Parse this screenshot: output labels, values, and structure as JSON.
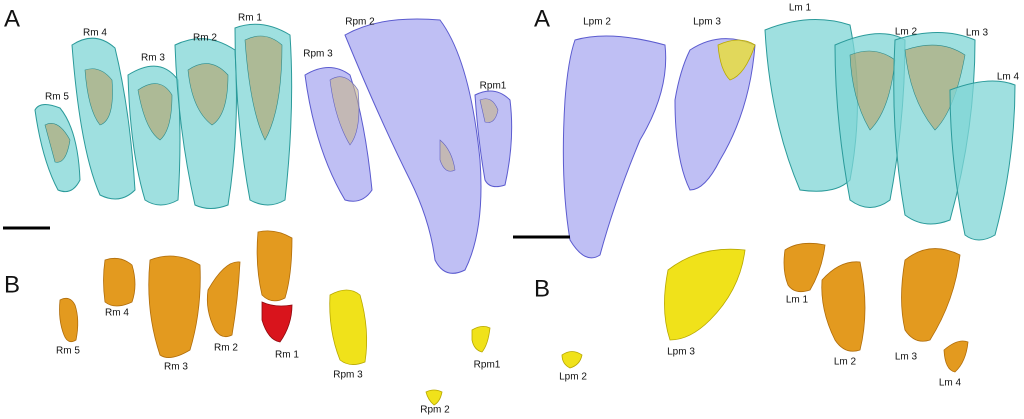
{
  "left": {
    "panel_a": "A",
    "panel_b": "B",
    "top_labels": [
      "Rm 5",
      "Rm 4",
      "Rm 3",
      "Rm 2",
      "Rm 1",
      "Rpm 3",
      "Rpm 2",
      "Rpm1"
    ],
    "bottom_labels": [
      "Rm 5",
      "Rm 4",
      "Rm 3",
      "Rm 2",
      "Rm 1",
      "Rpm 3",
      "Rpm1",
      "Rpm 2"
    ]
  },
  "right": {
    "panel_a": "A",
    "panel_b": "B",
    "top_labels": [
      "Lpm 2",
      "Lpm 3",
      "Lm 1",
      "Lm 2",
      "Lm 3",
      "Lm 4"
    ],
    "bottom_labels": [
      "Lpm 2",
      "Lpm 3",
      "Lm 1",
      "Lm 2",
      "Lm 3",
      "Lm 4"
    ]
  }
}
